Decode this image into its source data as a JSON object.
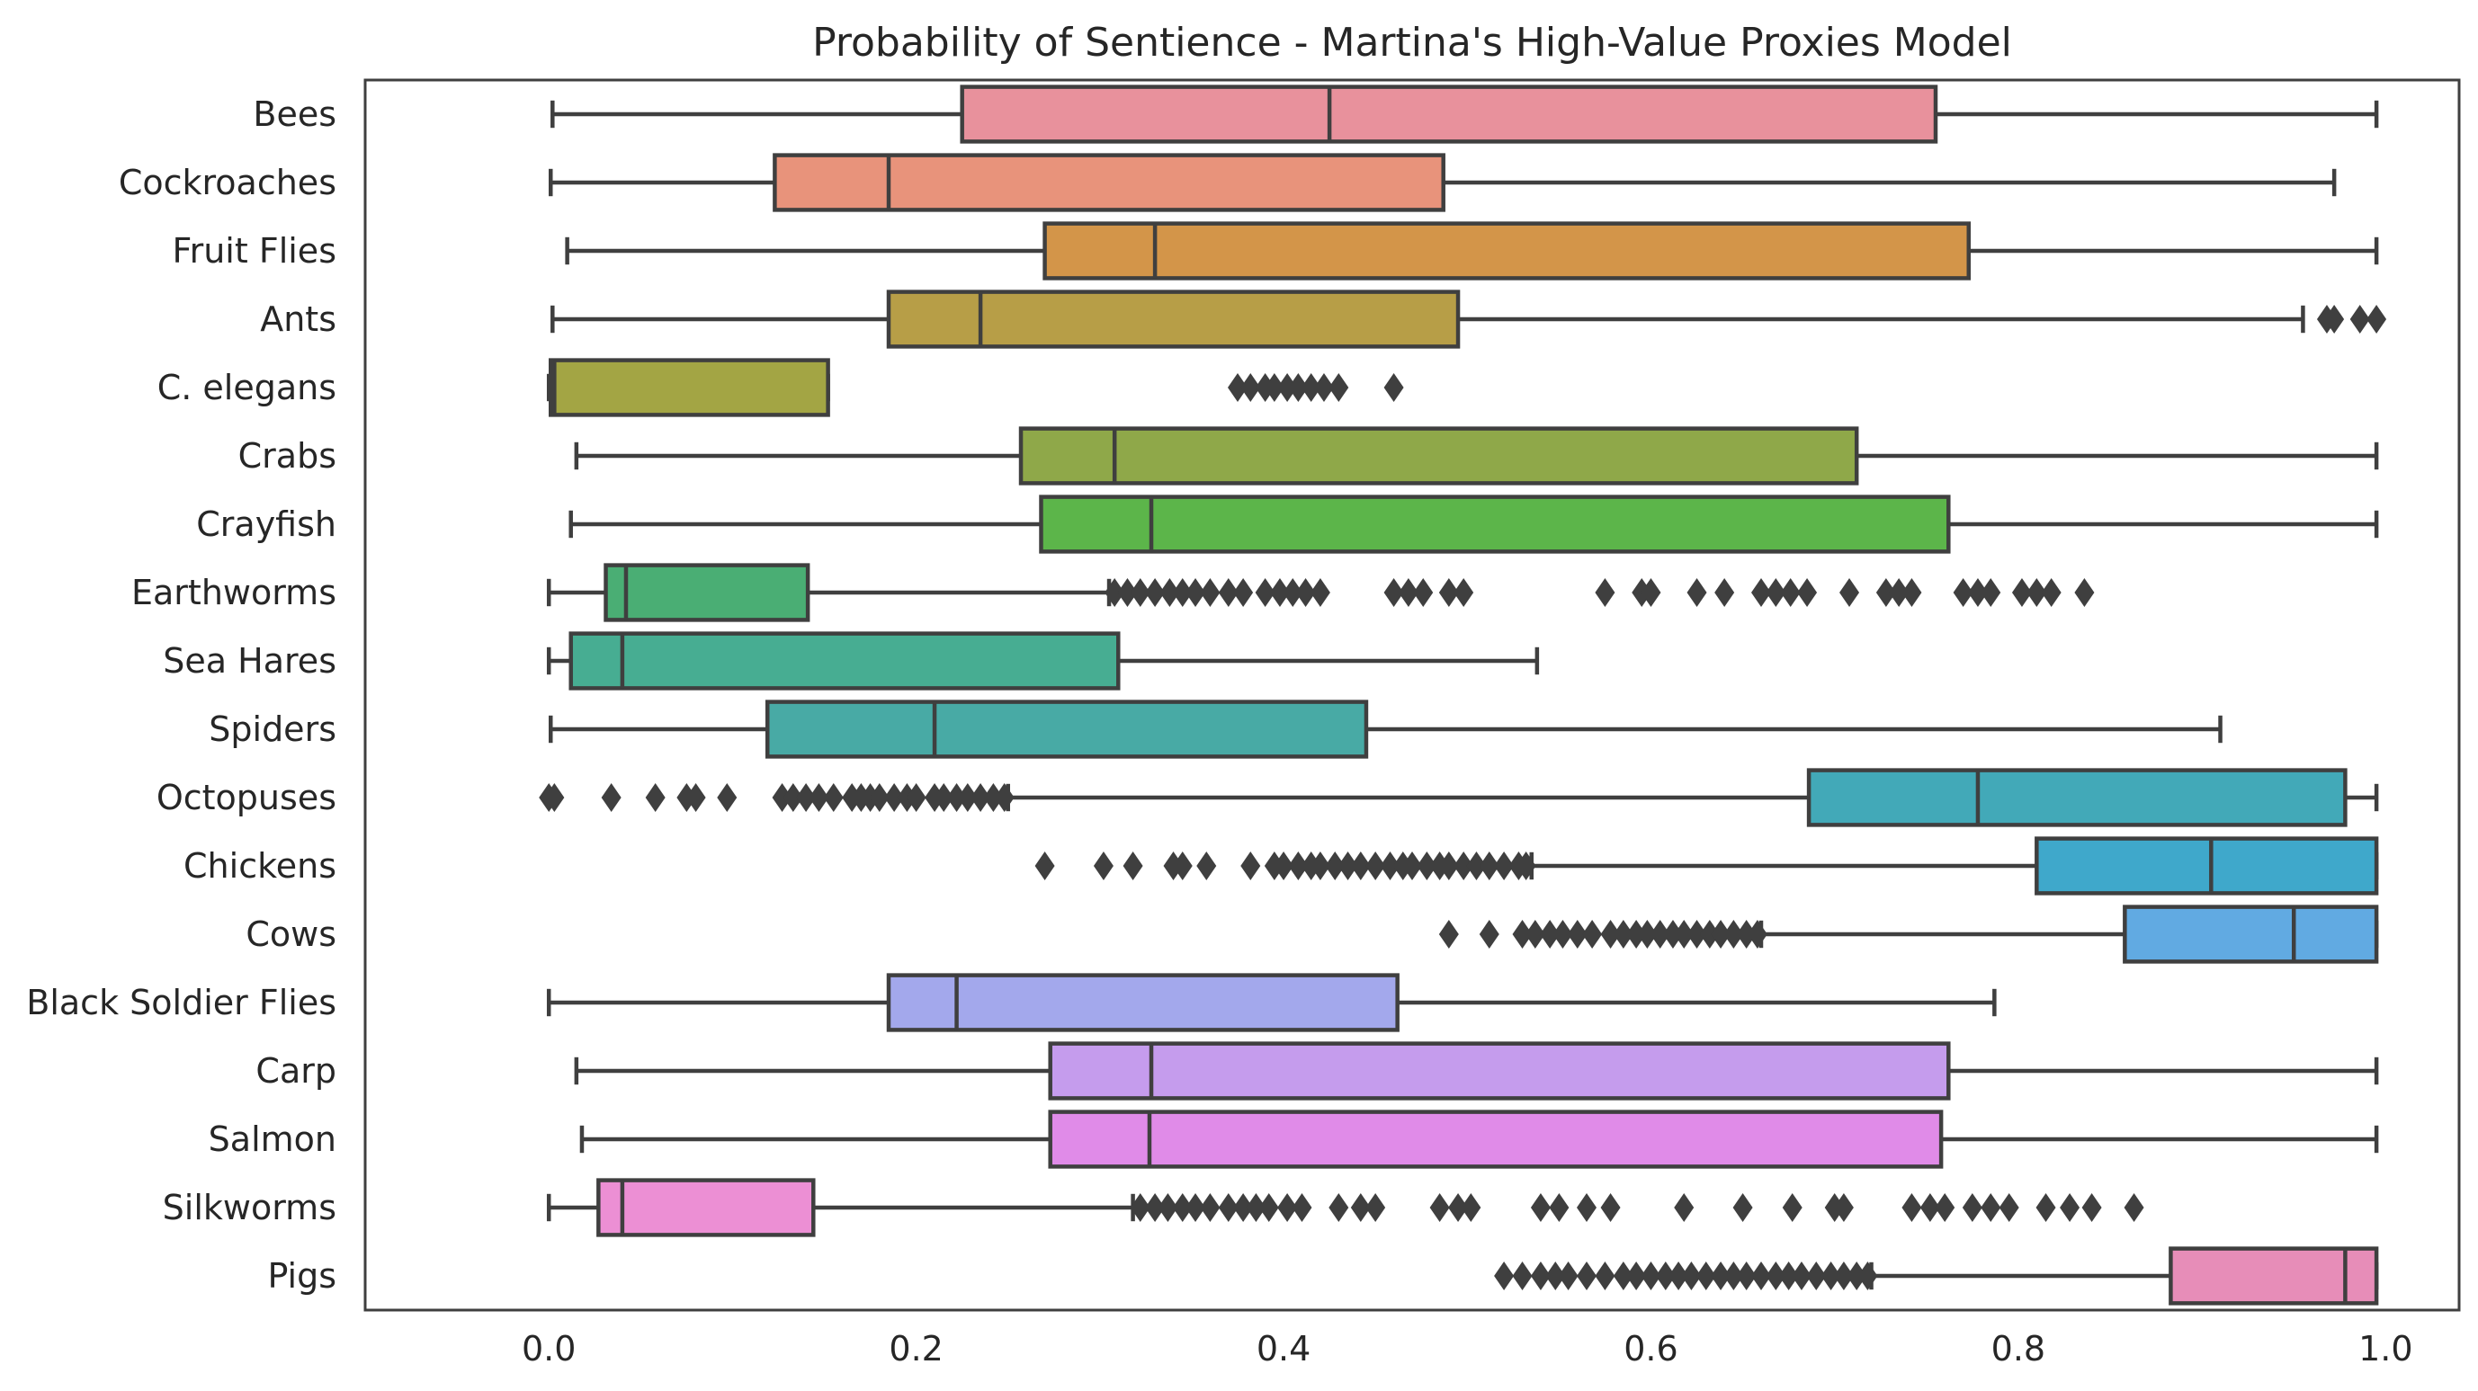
{
  "chart_data": {
    "type": "boxplot",
    "orientation": "horizontal",
    "title": "Probability of Sentience - Martina's High-Value Proxies Model",
    "xlabel": "",
    "ylabel": "",
    "xlim": [
      -0.1,
      1.04
    ],
    "xticks": [
      0.0,
      0.2,
      0.4,
      0.6,
      0.8,
      1.0
    ],
    "xtick_labels": [
      "0.0",
      "0.2",
      "0.4",
      "0.6",
      "0.8",
      "1.0"
    ],
    "grid": false,
    "legend": "none",
    "line_color": "#3f3f3f",
    "categories": [
      "Bees",
      "Cockroaches",
      "Fruit Flies",
      "Ants",
      "C. elegans",
      "Crabs",
      "Crayfish",
      "Earthworms",
      "Sea Hares",
      "Spiders",
      "Octopuses",
      "Chickens",
      "Cows",
      "Black Soldier Flies",
      "Carp",
      "Salmon",
      "Silkworms",
      "Pigs"
    ],
    "boxes": [
      {
        "category": "Bees",
        "color": "#e8919c",
        "whisker_low": 0.002,
        "q1": 0.225,
        "median": 0.425,
        "q3": 0.755,
        "whisker_high": 0.995,
        "outliers": []
      },
      {
        "category": "Cockroaches",
        "color": "#e8937b",
        "whisker_low": 0.001,
        "q1": 0.123,
        "median": 0.185,
        "q3": 0.487,
        "whisker_high": 0.972,
        "outliers": []
      },
      {
        "category": "Fruit Flies",
        "color": "#d39549",
        "whisker_low": 0.01,
        "q1": 0.27,
        "median": 0.33,
        "q3": 0.773,
        "whisker_high": 0.995,
        "outliers": []
      },
      {
        "category": "Ants",
        "color": "#b79e47",
        "whisker_low": 0.002,
        "q1": 0.185,
        "median": 0.235,
        "q3": 0.495,
        "whisker_high": 0.955,
        "outliers": [
          0.968,
          0.972,
          0.986,
          0.995
        ]
      },
      {
        "category": "C. elegans",
        "color": "#a3a544",
        "whisker_low": 0.0,
        "q1": 0.001,
        "median": 0.003,
        "q3": 0.152,
        "whisker_high": 0.152,
        "outliers": [
          0.375,
          0.382,
          0.39,
          0.395,
          0.402,
          0.408,
          0.415,
          0.422,
          0.43,
          0.46
        ]
      },
      {
        "category": "Crabs",
        "color": "#8fa849",
        "whisker_low": 0.015,
        "q1": 0.257,
        "median": 0.308,
        "q3": 0.712,
        "whisker_high": 0.995,
        "outliers": []
      },
      {
        "category": "Crayfish",
        "color": "#5cb54a",
        "whisker_low": 0.012,
        "q1": 0.268,
        "median": 0.328,
        "q3": 0.762,
        "whisker_high": 0.995,
        "outliers": []
      },
      {
        "category": "Earthworms",
        "color": "#4aae74",
        "whisker_low": 0.0,
        "q1": 0.031,
        "median": 0.042,
        "q3": 0.141,
        "whisker_high": 0.305,
        "outliers": [
          0.308,
          0.315,
          0.322,
          0.33,
          0.338,
          0.345,
          0.352,
          0.36,
          0.37,
          0.378,
          0.39,
          0.398,
          0.405,
          0.412,
          0.42,
          0.46,
          0.468,
          0.476,
          0.49,
          0.498,
          0.575,
          0.595,
          0.6,
          0.625,
          0.64,
          0.66,
          0.668,
          0.676,
          0.685,
          0.708,
          0.728,
          0.735,
          0.742,
          0.77,
          0.778,
          0.785,
          0.802,
          0.81,
          0.818,
          0.836
        ]
      },
      {
        "category": "Sea Hares",
        "color": "#47ad92",
        "whisker_low": 0.0,
        "q1": 0.012,
        "median": 0.04,
        "q3": 0.31,
        "whisker_high": 0.538,
        "outliers": []
      },
      {
        "category": "Spiders",
        "color": "#48aaa5",
        "whisker_low": 0.001,
        "q1": 0.119,
        "median": 0.21,
        "q3": 0.445,
        "whisker_high": 0.91,
        "outliers": []
      },
      {
        "category": "Octopuses",
        "color": "#42a9b8",
        "whisker_low": 0.25,
        "q1": 0.686,
        "median": 0.778,
        "q3": 0.978,
        "whisker_high": 0.995,
        "outliers": [
          0.0,
          0.003,
          0.034,
          0.058,
          0.075,
          0.08,
          0.097,
          0.127,
          0.133,
          0.14,
          0.147,
          0.155,
          0.165,
          0.17,
          0.175,
          0.18,
          0.188,
          0.195,
          0.2,
          0.21,
          0.215,
          0.222,
          0.228,
          0.235,
          0.242,
          0.248
        ]
      },
      {
        "category": "Chickens",
        "color": "#3fa8cb",
        "whisker_low": 0.535,
        "q1": 0.81,
        "median": 0.905,
        "q3": 0.995,
        "whisker_high": 0.995,
        "outliers": [
          0.27,
          0.302,
          0.318,
          0.34,
          0.345,
          0.358,
          0.382,
          0.395,
          0.4,
          0.408,
          0.415,
          0.42,
          0.428,
          0.435,
          0.442,
          0.45,
          0.458,
          0.465,
          0.47,
          0.478,
          0.485,
          0.49,
          0.498,
          0.505,
          0.512,
          0.52,
          0.528,
          0.532
        ]
      },
      {
        "category": "Cows",
        "color": "#61aae2",
        "whisker_low": 0.66,
        "q1": 0.858,
        "median": 0.95,
        "q3": 0.995,
        "whisker_high": 0.995,
        "outliers": [
          0.49,
          0.512,
          0.53,
          0.537,
          0.545,
          0.552,
          0.56,
          0.568,
          0.578,
          0.585,
          0.592,
          0.598,
          0.605,
          0.612,
          0.618,
          0.625,
          0.632,
          0.638,
          0.645,
          0.652,
          0.658
        ]
      },
      {
        "category": "Black Soldier Flies",
        "color": "#a3a8ec",
        "whisker_low": 0.0,
        "q1": 0.185,
        "median": 0.222,
        "q3": 0.462,
        "whisker_high": 0.787,
        "outliers": []
      },
      {
        "category": "Carp",
        "color": "#c59ced",
        "whisker_low": 0.015,
        "q1": 0.273,
        "median": 0.328,
        "q3": 0.762,
        "whisker_high": 0.995,
        "outliers": []
      },
      {
        "category": "Salmon",
        "color": "#e08be8",
        "whisker_low": 0.018,
        "q1": 0.273,
        "median": 0.327,
        "q3": 0.758,
        "whisker_high": 0.995,
        "outliers": []
      },
      {
        "category": "Silkworms",
        "color": "#ec8fd4",
        "whisker_low": 0.0,
        "q1": 0.027,
        "median": 0.04,
        "q3": 0.144,
        "whisker_high": 0.318,
        "outliers": [
          0.322,
          0.33,
          0.337,
          0.345,
          0.352,
          0.36,
          0.37,
          0.378,
          0.385,
          0.392,
          0.402,
          0.41,
          0.43,
          0.442,
          0.45,
          0.485,
          0.495,
          0.502,
          0.54,
          0.55,
          0.565,
          0.578,
          0.618,
          0.65,
          0.677,
          0.7,
          0.705,
          0.742,
          0.752,
          0.76,
          0.775,
          0.785,
          0.795,
          0.815,
          0.828,
          0.84,
          0.863
        ]
      },
      {
        "category": "Pigs",
        "color": "#e78db8",
        "whisker_low": 0.72,
        "q1": 0.883,
        "median": 0.978,
        "q3": 0.995,
        "whisker_high": 0.995,
        "outliers": [
          0.52,
          0.53,
          0.54,
          0.548,
          0.555,
          0.565,
          0.575,
          0.585,
          0.592,
          0.6,
          0.608,
          0.615,
          0.622,
          0.63,
          0.638,
          0.645,
          0.652,
          0.66,
          0.668,
          0.675,
          0.682,
          0.69,
          0.698,
          0.705,
          0.712,
          0.718
        ]
      }
    ]
  }
}
